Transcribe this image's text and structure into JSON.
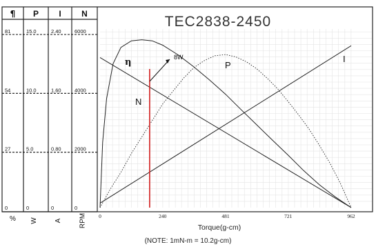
{
  "chart_data": {
    "type": "line",
    "title": "TEC2838-2450",
    "xlabel": "Torque(g-cm)",
    "note": "(NOTE: 1mN-m = 10.2g-cm)",
    "x_ticks": [
      "0",
      "240",
      "481",
      "721",
      "962"
    ],
    "xlim": [
      0,
      962
    ],
    "scale_header_icon": "eta-symbol",
    "scales": [
      {
        "key": "eta",
        "header": "η",
        "unit": "%",
        "ticks": [
          "81",
          "54",
          "27",
          "0"
        ]
      },
      {
        "key": "P",
        "header": "P",
        "unit": "W",
        "ticks": [
          "15.0",
          "10.0",
          "5.0",
          "0"
        ]
      },
      {
        "key": "I",
        "header": "I",
        "unit": "A",
        "ticks": [
          "2.40",
          "1.60",
          "0.80",
          "0"
        ]
      },
      {
        "key": "N",
        "header": "N",
        "unit": "RPM",
        "ticks": [
          "6000",
          "4000",
          "2000",
          "0"
        ]
      }
    ],
    "series": [
      {
        "name": "η",
        "axis": "eta",
        "style": "solid",
        "x": [
          0,
          10,
          25,
          50,
          80,
          120,
          160,
          200,
          240,
          300,
          360,
          420,
          481,
          540,
          600,
          660,
          721,
          780,
          840,
          900,
          962
        ],
        "y": [
          0,
          30,
          50,
          66,
          73.5,
          76.5,
          77,
          76.5,
          74.5,
          70,
          64.5,
          58.5,
          52,
          45,
          38,
          31,
          24,
          17,
          10.5,
          5,
          0
        ]
      },
      {
        "name": "P",
        "axis": "P",
        "style": "dotted",
        "x": [
          0,
          40,
          80,
          120,
          160,
          200,
          240,
          280,
          320,
          360,
          400,
          440,
          481,
          520,
          560,
          600,
          640,
          680,
          721,
          760,
          800,
          840,
          880,
          920,
          962
        ],
        "y": [
          0,
          1.6,
          3.0,
          4.6,
          6.0,
          7.4,
          8.8,
          9.9,
          11.0,
          11.9,
          12.5,
          12.9,
          13.0,
          12.8,
          12.4,
          11.8,
          11.0,
          10.1,
          9.0,
          7.9,
          6.7,
          5.3,
          3.8,
          2.1,
          0
        ]
      },
      {
        "name": "I",
        "axis": "I",
        "style": "solid",
        "x": [
          0,
          962
        ],
        "y": [
          0.06,
          2.2
        ]
      },
      {
        "name": "N",
        "axis": "N",
        "style": "solid",
        "x": [
          0,
          962
        ],
        "y": [
          5100,
          0
        ]
      }
    ],
    "marker": {
      "x": 190,
      "label": "8W",
      "color": "#d42020"
    },
    "grid": true
  }
}
